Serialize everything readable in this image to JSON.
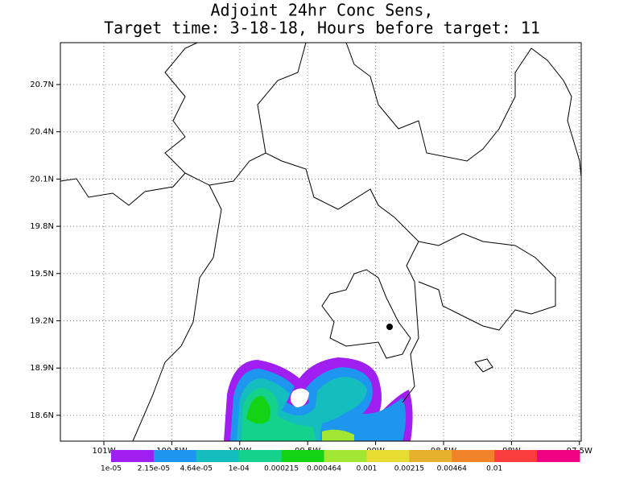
{
  "map": {
    "title": [
      "Adjoint 24hr Conc Sens,",
      "Target time: 3-18-18, Hours before target: 11"
    ],
    "lat_labels": [
      "20.7N",
      "20.4N",
      "20.1N",
      "19.8N",
      "19.5N",
      "19.2N",
      "18.9N",
      "18.6N"
    ],
    "lon_labels": [
      "101W",
      "100.5W",
      "100W",
      "99.5W",
      "99W",
      "98.5W",
      "98W",
      "97.5W"
    ],
    "colorbar": {
      "colors": [
        "#a01ef0",
        "#1e96f0",
        "#14bebe",
        "#14d28c",
        "#14d214",
        "#a0e632",
        "#e6dc32",
        "#e6af2d",
        "#f08228",
        "#fa3c3c",
        "#f00082"
      ],
      "labels": [
        "1e-05",
        "2.15e-05",
        "4.64e-05",
        "1e-04",
        "0.000215",
        "0.000464",
        "0.001",
        "0.00215",
        "0.00464",
        "0.01"
      ]
    }
  }
}
